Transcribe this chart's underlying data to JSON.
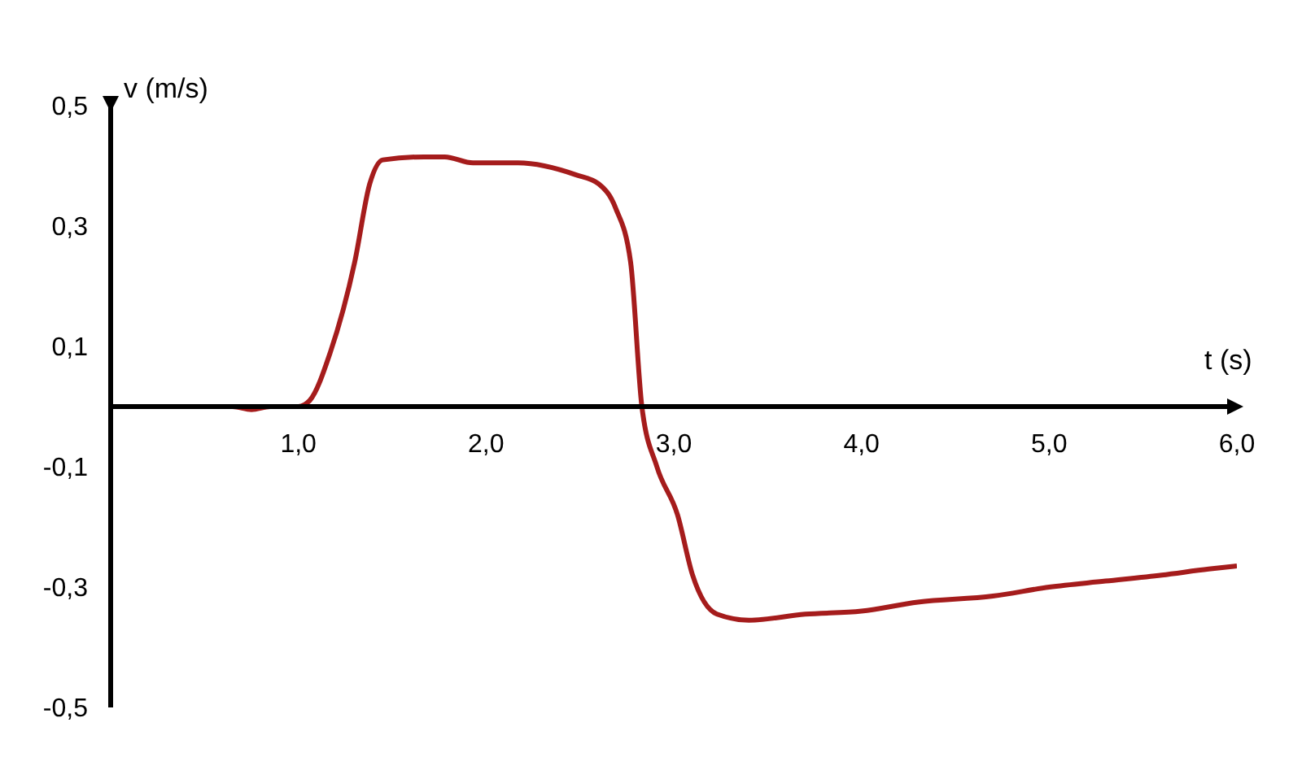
{
  "chart_data": {
    "type": "line",
    "xlabel": "t (s)",
    "ylabel": "v (m/s)",
    "x": [
      0,
      0.3,
      0.65,
      0.75,
      0.85,
      1.0,
      1.06,
      1.17,
      1.3,
      1.38,
      1.45,
      1.67,
      1.78,
      1.93,
      2.17,
      2.48,
      2.6,
      2.69,
      2.77,
      2.83,
      2.91,
      3.02,
      3.1,
      3.23,
      3.4,
      3.7,
      4.0,
      4.3,
      4.7,
      5.0,
      5.3,
      5.6,
      5.85,
      6.0
    ],
    "series": [
      {
        "color": "#a51c1c",
        "values": [
          0,
          0,
          0,
          -0.005,
          0,
          0,
          0.01,
          0.09,
          0.24,
          0.37,
          0.41,
          0.415,
          0.415,
          0.405,
          0.405,
          0.385,
          0.37,
          0.33,
          0.24,
          0,
          -0.1,
          -0.18,
          -0.28,
          -0.345,
          -0.355,
          -0.345,
          -0.34,
          -0.325,
          -0.315,
          -0.3,
          -0.29,
          -0.28,
          -0.27,
          -0.265
        ]
      }
    ],
    "xlim": [
      0,
      6
    ],
    "xticks": [
      {
        "value": 1,
        "label": "1,0"
      },
      {
        "value": 2,
        "label": "2,0"
      },
      {
        "value": 3,
        "label": "3,0"
      },
      {
        "value": 4,
        "label": "4,0"
      },
      {
        "value": 5,
        "label": "5,0"
      },
      {
        "value": 6,
        "label": "6,0"
      }
    ],
    "ylim": [
      -0.5,
      0.5
    ],
    "yticks": [
      {
        "value": -0.5,
        "label": "-0,5"
      },
      {
        "value": -0.3,
        "label": "-0,3"
      },
      {
        "value": -0.1,
        "label": "-0,1"
      },
      {
        "value": 0.1,
        "label": "0,1"
      },
      {
        "value": 0.3,
        "label": "0,3"
      },
      {
        "value": 0.5,
        "label": "0,5"
      }
    ],
    "grid": false,
    "legend": false,
    "marker": "none",
    "line_style": "solid"
  }
}
